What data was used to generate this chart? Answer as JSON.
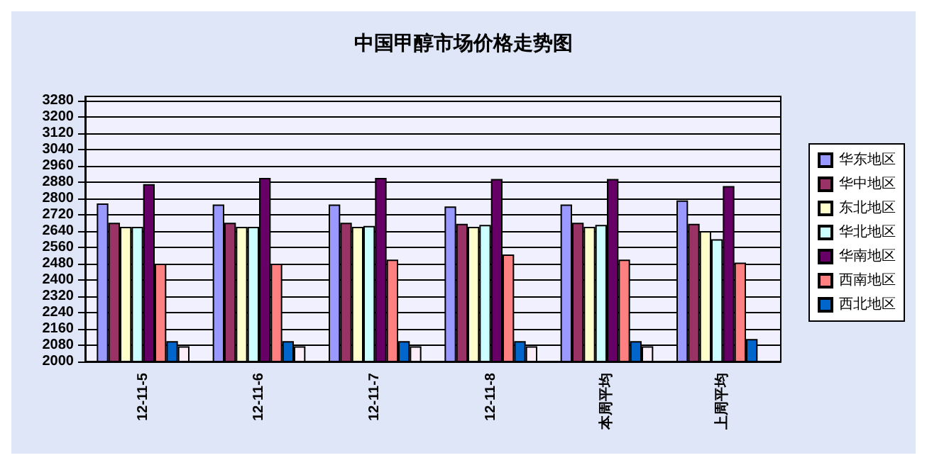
{
  "chart_data": {
    "type": "bar",
    "title": "中国甲醇市场价格走势图",
    "categories": [
      "12-11-5",
      "12-11-6",
      "12-11-7",
      "12-11-8",
      "本周平均",
      "上周平均"
    ],
    "series": [
      {
        "name": "华东地区",
        "color": "#9999ff",
        "values": [
          2775,
          2770,
          2770,
          2760,
          2770,
          2790
        ]
      },
      {
        "name": "华中地区",
        "color": "#993366",
        "values": [
          2680,
          2680,
          2680,
          2675,
          2680,
          2675
        ]
      },
      {
        "name": "东北地区",
        "color": "#ffffcc",
        "values": [
          2660,
          2660,
          2660,
          2660,
          2660,
          2640
        ]
      },
      {
        "name": "华北地区",
        "color": "#ccffff",
        "values": [
          2660,
          2660,
          2665,
          2670,
          2670,
          2600
        ]
      },
      {
        "name": "华南地区",
        "color": "#660066",
        "values": [
          2870,
          2900,
          2900,
          2895,
          2895,
          2860
        ]
      },
      {
        "name": "西南地区",
        "color": "#ff8080",
        "values": [
          2480,
          2480,
          2500,
          2525,
          2500,
          2485
        ]
      },
      {
        "name": "西北地区",
        "color": "#0066cc",
        "values": [
          2100,
          2100,
          2100,
          2100,
          2100,
          2110
        ]
      },
      {
        "color": "#fbeef8",
        "values": [
          2075,
          2075,
          2075,
          2075,
          2075,
          null
        ]
      }
    ],
    "ylim": [
      2000,
      3300
    ],
    "yticks": [
      2000,
      2080,
      2160,
      2240,
      2320,
      2400,
      2480,
      2560,
      2640,
      2720,
      2800,
      2880,
      2960,
      3040,
      3120,
      3200,
      3280
    ],
    "grid": "y",
    "legend": "right"
  }
}
